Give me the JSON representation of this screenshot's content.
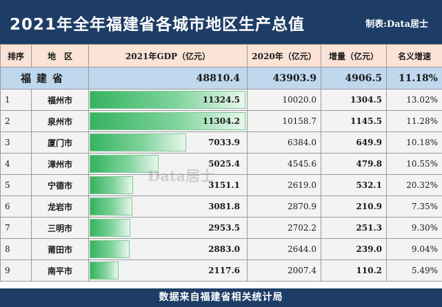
{
  "header": {
    "title": "2021年全年福建省各城市地区生产总值",
    "maker": "制表:Data居士"
  },
  "table": {
    "headers": [
      "排序",
      "地　区",
      "2021年GDP（亿元）",
      "2020年（亿元）",
      "增量（亿元）",
      "名义增速"
    ],
    "province": {
      "name": "福建省",
      "gdp_2021": "48810.4",
      "gdp_2020": "43903.9",
      "increase": "4906.5",
      "growth": "11.18%"
    }
  },
  "chart_data": {
    "type": "bar",
    "categories": [
      "福州市",
      "泉州市",
      "厦门市",
      "漳州市",
      "宁德市",
      "龙岩市",
      "三明市",
      "莆田市",
      "南平市"
    ],
    "ranks": [
      "1",
      "2",
      "3",
      "4",
      "5",
      "6",
      "7",
      "8",
      "9"
    ],
    "values": [
      11324.5,
      11304.2,
      7033.9,
      5025.4,
      3151.1,
      3081.8,
      2953.5,
      2883.0,
      2117.6
    ],
    "values_text": [
      "11324.5",
      "11304.2",
      "7033.9",
      "5025.4",
      "3151.1",
      "3081.8",
      "2953.5",
      "2883.0",
      "2117.6"
    ],
    "gdp_2020": [
      "10020.0",
      "10158.7",
      "6384.0",
      "4545.6",
      "2619.0",
      "2870.9",
      "2702.2",
      "2644.0",
      "2007.4"
    ],
    "increase": [
      "1304.5",
      "1145.5",
      "649.9",
      "479.8",
      "532.1",
      "210.9",
      "251.3",
      "239.0",
      "110.2"
    ],
    "growth": [
      "13.02%",
      "11.28%",
      "10.18%",
      "10.55%",
      "20.32%",
      "7.35%",
      "9.30%",
      "9.04%",
      "5.49%"
    ],
    "xmax": 11324.5,
    "colors": {
      "bar": "#34b35f",
      "header": "#1e3d66",
      "province_row": "#bfd8ee",
      "column_header": "#fbe3d6"
    }
  },
  "watermark": "Data居士",
  "footer": {
    "source": "数据来自福建省相关统计局"
  }
}
